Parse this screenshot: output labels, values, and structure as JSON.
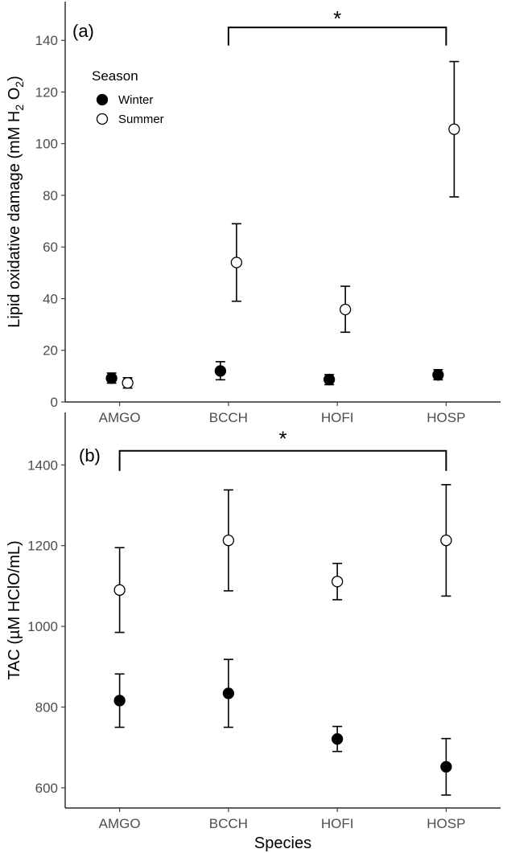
{
  "chart_data": [
    {
      "type": "scatter",
      "panel_label": "(a)",
      "xlabel": "",
      "ylabel_parts": [
        "Lipid oxidative damage (mM H",
        "2",
        " O",
        "2",
        ")"
      ],
      "categories": [
        "AMGO",
        "BCCH",
        "HOFI",
        "HOSP"
      ],
      "ylim": [
        0,
        155
      ],
      "yticks": [
        0,
        20,
        40,
        60,
        80,
        100,
        120,
        140
      ],
      "grid": false,
      "legend": {
        "title": "Season",
        "placement": "top-left",
        "entries": [
          "Winter",
          "Summer"
        ]
      },
      "series": [
        {
          "name": "Winter",
          "color": "#000000",
          "fill": "#000000",
          "values": [
            9.2,
            12.0,
            8.7,
            10.5
          ],
          "lower": [
            7.3,
            8.6,
            6.7,
            8.6
          ],
          "upper": [
            11.2,
            15.6,
            10.6,
            12.5
          ]
        },
        {
          "name": "Summer",
          "color": "#000000",
          "fill": "#ffffff",
          "values": [
            7.4,
            54.0,
            35.8,
            105.6
          ],
          "lower": [
            5.4,
            39.0,
            27.0,
            79.4
          ],
          "upper": [
            9.4,
            69.0,
            44.8,
            131.8
          ]
        }
      ],
      "significance": {
        "label": "*",
        "from": "BCCH",
        "to": "HOSP",
        "y": 145,
        "drop": 7,
        "label_y": 150
      }
    },
    {
      "type": "scatter",
      "panel_label": "(b)",
      "xlabel": "Species",
      "ylabel_parts": [
        "TAC (µM HClO/mL)"
      ],
      "categories": [
        "AMGO",
        "BCCH",
        "HOFI",
        "HOSP"
      ],
      "ylim": [
        550,
        1530
      ],
      "yticks": [
        600,
        800,
        1000,
        1200,
        1400
      ],
      "grid": false,
      "series": [
        {
          "name": "Winter",
          "color": "#000000",
          "fill": "#000000",
          "values": [
            816,
            834,
            721,
            652
          ],
          "lower": [
            750,
            750,
            690,
            582
          ],
          "upper": [
            882,
            918,
            752,
            722
          ]
        },
        {
          "name": "Summer",
          "color": "#000000",
          "fill": "#ffffff",
          "values": [
            1090,
            1213,
            1111,
            1213
          ],
          "lower": [
            985,
            1088,
            1066,
            1075
          ],
          "upper": [
            1195,
            1338,
            1156,
            1351
          ]
        }
      ],
      "significance": {
        "label": "*",
        "from": "AMGO",
        "to": "HOSP",
        "y": 1435,
        "drop": 50,
        "label_y": 1475
      }
    }
  ]
}
